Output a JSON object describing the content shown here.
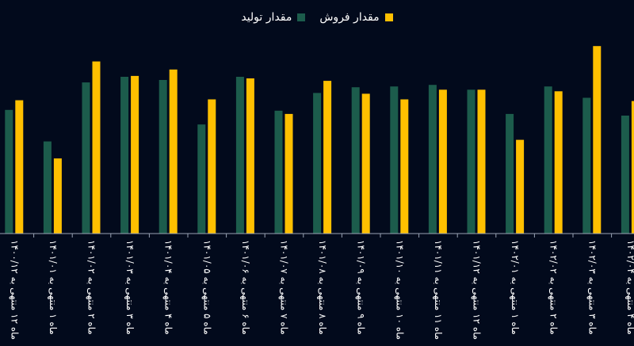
{
  "chart_data": {
    "type": "bar",
    "categories": [
      "ماه ۱۲ منتهی به ۱۴۰۰/۱۲",
      "ماه ۱ منتهی به ۱۴۰۱/۰۱",
      "ماه ۲ منتهی به ۱۴۰۱/۰۲",
      "ماه ۳ منتهی به ۱۴۰۱/۰۳",
      "ماه ۴ منتهی به ۱۴۰۱/۰۴",
      "ماه ۵ منتهی به ۱۴۰۱/۰۵",
      "ماه ۶ منتهی به ۱۴۰۱/۰۶",
      "ماه ۷ منتهی به ۱۴۰۱/۰۷",
      "ماه ۸ منتهی به ۱۴۰۱/۰۸",
      "ماه ۹ منتهی به ۱۴۰۱/۰۹",
      "ماه ۱۰ منتهی به ۱۴۰۱/۱۰",
      "ماه ۱۱ منتهی به ۱۴۰۱/۱۱",
      "ماه ۱۲ منتهی به ۱۴۰۱/۱۲",
      "ماه ۱ منتهی به ۱۴۰۲/۰۱",
      "ماه ۲ منتهی به ۱۴۰۲/۰۲",
      "ماه ۳ منتهی به ۱۴۰۲/۰۳",
      "ماه ۴ منتهی به ۱۴۰۲/۰۴"
    ],
    "series": [
      {
        "name": "مقدار تولید",
        "color": "#1c5c4c",
        "values": [
          153,
          114,
          187,
          194,
          190,
          135,
          194,
          152,
          174,
          181,
          182,
          184,
          178,
          148,
          182,
          168,
          146
        ]
      },
      {
        "name": "مقدار فروش",
        "color": "#ffc000",
        "values": [
          165,
          93,
          213,
          195,
          203,
          166,
          192,
          148,
          189,
          173,
          166,
          178,
          178,
          116,
          176,
          232,
          164
        ]
      }
    ],
    "ylim": [
      0,
      240
    ],
    "grid": false,
    "legend_position": "top-center"
  }
}
